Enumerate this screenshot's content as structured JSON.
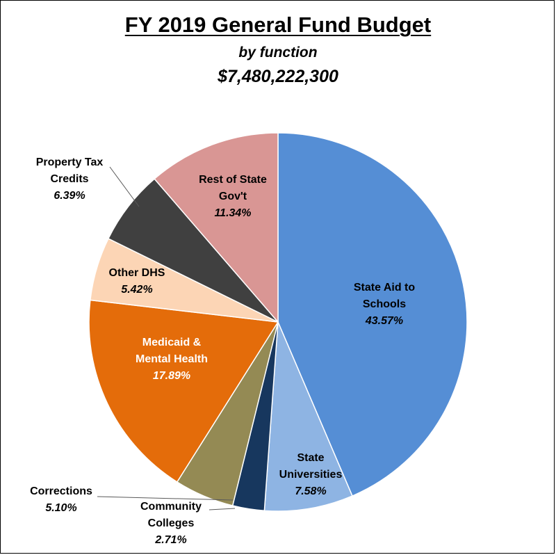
{
  "chart_data": {
    "type": "pie",
    "title": "FY 2019 General Fund Budget",
    "subtitle": "by function",
    "total": "$7,480,222,300",
    "slices": [
      {
        "lines": [
          "State Aid to",
          "Schools"
        ],
        "percent_label": "43.57%",
        "value": 43.57,
        "color": "#558ED5",
        "text_color": "#000000"
      },
      {
        "lines": [
          "State",
          "Universities"
        ],
        "percent_label": "7.58%",
        "value": 7.58,
        "color": "#8EB4E3",
        "text_color": "#000000"
      },
      {
        "lines": [
          "Community",
          "Colleges"
        ],
        "percent_label": "2.71%",
        "value": 2.71,
        "color": "#17375E",
        "text_color": "#000000"
      },
      {
        "lines": [
          "Corrections"
        ],
        "percent_label": "5.10%",
        "value": 5.1,
        "color": "#948A54",
        "text_color": "#000000"
      },
      {
        "lines": [
          "Medicaid &",
          "Mental Health"
        ],
        "percent_label": "17.89%",
        "value": 17.89,
        "color": "#E46C0A",
        "text_color": "#FFFFFF"
      },
      {
        "lines": [
          "Other DHS"
        ],
        "percent_label": "5.42%",
        "value": 5.42,
        "color": "#FCD5B5",
        "text_color": "#000000"
      },
      {
        "lines": [
          "Property Tax",
          "Credits"
        ],
        "percent_label": "6.39%",
        "value": 6.39,
        "color": "#404040",
        "text_color": "#000000"
      },
      {
        "lines": [
          "Rest of State",
          "Gov't"
        ],
        "percent_label": "11.34%",
        "value": 11.34,
        "color": "#D99694",
        "text_color": "#000000"
      }
    ]
  }
}
